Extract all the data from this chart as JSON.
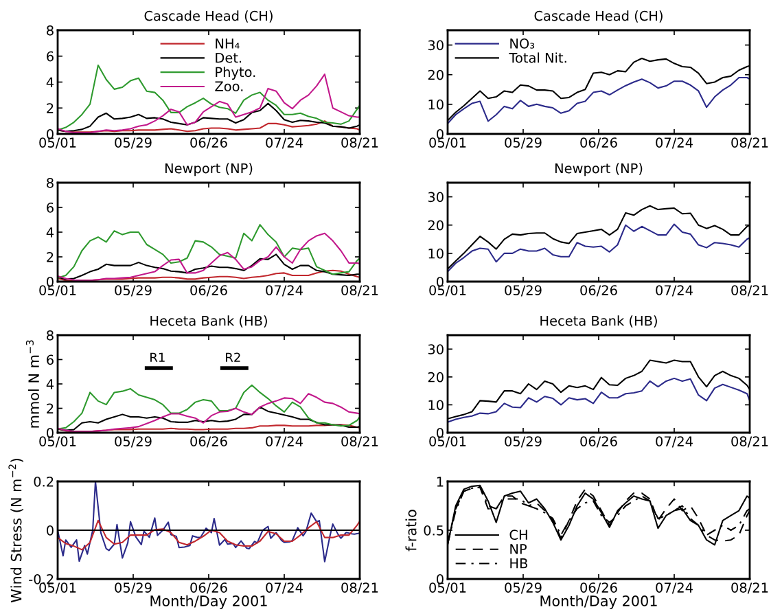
{
  "chart_data": [
    {
      "type": "line",
      "title": "Cascade Head (CH)",
      "x": [
        "2001-05-01",
        "2001-05-04",
        "2001-05-07",
        "2001-05-10",
        "2001-05-13",
        "2001-05-16",
        "2001-05-19",
        "2001-05-22",
        "2001-05-25",
        "2001-05-28",
        "2001-05-31",
        "2001-06-03",
        "2001-06-06",
        "2001-06-09",
        "2001-06-12",
        "2001-06-15",
        "2001-06-18",
        "2001-06-21",
        "2001-06-24",
        "2001-06-27",
        "2001-06-30",
        "2001-07-03",
        "2001-07-06",
        "2001-07-09",
        "2001-07-12",
        "2001-07-15",
        "2001-07-18",
        "2001-07-21",
        "2001-07-24",
        "2001-07-27",
        "2001-07-30",
        "2001-08-02",
        "2001-08-05",
        "2001-08-08",
        "2001-08-11",
        "2001-08-14",
        "2001-08-17",
        "2001-08-20",
        "2001-08-21"
      ],
      "series": [
        {
          "name": "NH₄",
          "color": "#c1272d",
          "values": [
            0.3,
            0.2,
            0.15,
            0.15,
            0.15,
            0.2,
            0.25,
            0.2,
            0.25,
            0.25,
            0.3,
            0.3,
            0.3,
            0.35,
            0.4,
            0.3,
            0.2,
            0.25,
            0.4,
            0.45,
            0.45,
            0.4,
            0.3,
            0.35,
            0.4,
            0.45,
            0.8,
            0.8,
            0.7,
            0.55,
            0.6,
            0.65,
            0.75,
            1.0,
            0.6,
            0.55,
            0.45,
            0.4,
            0.3
          ]
        },
        {
          "name": "Det.",
          "color": "#000000",
          "values": [
            0.3,
            0.2,
            0.25,
            0.35,
            0.6,
            1.3,
            1.6,
            1.15,
            1.2,
            1.3,
            1.5,
            1.2,
            1.25,
            1.15,
            0.9,
            0.8,
            0.7,
            0.9,
            1.25,
            1.2,
            1.15,
            1.15,
            0.85,
            1.1,
            1.65,
            1.8,
            2.35,
            1.8,
            1.1,
            0.9,
            1.05,
            1.0,
            0.9,
            0.85,
            0.6,
            0.55,
            0.45,
            0.6,
            0.7
          ]
        },
        {
          "name": "Phyto.",
          "color": "#2e9a2e",
          "values": [
            0.3,
            0.5,
            0.9,
            1.5,
            2.3,
            5.3,
            4.2,
            3.45,
            3.6,
            4.1,
            4.3,
            3.3,
            3.2,
            2.6,
            1.65,
            1.65,
            2.1,
            2.4,
            2.75,
            2.3,
            2.05,
            1.95,
            1.6,
            2.6,
            3.0,
            3.2,
            2.6,
            2.2,
            1.5,
            1.5,
            1.6,
            1.35,
            1.2,
            0.9,
            0.85,
            0.75,
            1.0,
            1.9,
            2.2
          ]
        },
        {
          "name": "Zoo.",
          "color": "#c2188b",
          "values": [
            0.4,
            0.2,
            0.1,
            0.1,
            0.1,
            0.2,
            0.3,
            0.25,
            0.3,
            0.4,
            0.6,
            0.7,
            1.0,
            1.4,
            1.9,
            1.7,
            0.7,
            0.9,
            1.7,
            2.1,
            2.5,
            2.3,
            1.3,
            1.5,
            1.7,
            2.0,
            3.5,
            3.3,
            2.4,
            1.95,
            2.6,
            3.0,
            3.7,
            4.6,
            2.0,
            1.7,
            1.4,
            1.3,
            1.3
          ]
        }
      ],
      "xlim": [
        "2001-05-01",
        "2001-08-21"
      ],
      "xticks": [
        {
          "value": "2001-05-01",
          "label": "05/01"
        },
        {
          "value": "2001-05-29",
          "label": "05/29"
        },
        {
          "value": "2001-06-26",
          "label": "06/26"
        },
        {
          "value": "2001-07-24",
          "label": "07/24"
        },
        {
          "value": "2001-08-21",
          "label": "08/21"
        }
      ],
      "ylim": [
        0,
        8
      ],
      "yticks": [
        0,
        2,
        4,
        6,
        8
      ],
      "legend": "top",
      "grid": false
    },
    {
      "type": "line",
      "title": "Cascade Head (CH)",
      "x": [
        "2001-05-01",
        "2001-05-04",
        "2001-05-07",
        "2001-05-10",
        "2001-05-13",
        "2001-05-16",
        "2001-05-19",
        "2001-05-22",
        "2001-05-25",
        "2001-05-28",
        "2001-05-31",
        "2001-06-03",
        "2001-06-06",
        "2001-06-09",
        "2001-06-12",
        "2001-06-15",
        "2001-06-18",
        "2001-06-21",
        "2001-06-24",
        "2001-06-27",
        "2001-06-30",
        "2001-07-03",
        "2001-07-06",
        "2001-07-09",
        "2001-07-12",
        "2001-07-15",
        "2001-07-18",
        "2001-07-21",
        "2001-07-24",
        "2001-07-27",
        "2001-07-30",
        "2001-08-02",
        "2001-08-05",
        "2001-08-08",
        "2001-08-11",
        "2001-08-14",
        "2001-08-17",
        "2001-08-20",
        "2001-08-21"
      ],
      "series": [
        {
          "name": "NO₃",
          "color": "#2b2a8a",
          "values": [
            3.5,
            6.5,
            8.5,
            10.3,
            11,
            4.3,
            6.5,
            9.3,
            8.5,
            11.3,
            9.3,
            10,
            9.3,
            8.8,
            7,
            7.8,
            10.3,
            11,
            14,
            14.5,
            13.2,
            14.8,
            16.3,
            17.5,
            18.5,
            17.3,
            15.5,
            16.2,
            17.8,
            17.8,
            16.5,
            14.5,
            9,
            12.5,
            14.8,
            16.5,
            19,
            19,
            18.5
          ]
        },
        {
          "name": "Total Nit.",
          "color": "#000000",
          "values": [
            4.5,
            7.3,
            9.5,
            12,
            14.5,
            12,
            12.5,
            14.5,
            14,
            16.5,
            16.2,
            14.8,
            14.8,
            14.5,
            12,
            12.3,
            14,
            15,
            20.5,
            20.8,
            20,
            21.3,
            21,
            24.2,
            25.5,
            24.5,
            25,
            25.3,
            23.8,
            22.7,
            22.5,
            20.5,
            17,
            17.5,
            19,
            19.5,
            21.5,
            22.7,
            23
          ]
        }
      ],
      "xlim": [
        "2001-05-01",
        "2001-08-21"
      ],
      "xticks": [
        {
          "value": "2001-05-01",
          "label": "05/01"
        },
        {
          "value": "2001-05-29",
          "label": "05/29"
        },
        {
          "value": "2001-06-26",
          "label": "06/26"
        },
        {
          "value": "2001-07-24",
          "label": "07/24"
        },
        {
          "value": "2001-08-21",
          "label": "08/21"
        }
      ],
      "ylim": [
        0,
        35
      ],
      "yticks": [
        0,
        10,
        20,
        30
      ],
      "legend": "top left",
      "grid": false
    },
    {
      "type": "line",
      "title": "Newport (NP)",
      "x": [
        "2001-05-01",
        "2001-05-04",
        "2001-05-07",
        "2001-05-10",
        "2001-05-13",
        "2001-05-16",
        "2001-05-19",
        "2001-05-22",
        "2001-05-25",
        "2001-05-28",
        "2001-05-31",
        "2001-06-03",
        "2001-06-06",
        "2001-06-09",
        "2001-06-12",
        "2001-06-15",
        "2001-06-18",
        "2001-06-21",
        "2001-06-24",
        "2001-06-27",
        "2001-06-30",
        "2001-07-03",
        "2001-07-06",
        "2001-07-09",
        "2001-07-12",
        "2001-07-15",
        "2001-07-18",
        "2001-07-21",
        "2001-07-24",
        "2001-07-27",
        "2001-07-30",
        "2001-08-02",
        "2001-08-05",
        "2001-08-08",
        "2001-08-11",
        "2001-08-14",
        "2001-08-17",
        "2001-08-20",
        "2001-08-21"
      ],
      "series": [
        {
          "color": "#c1272d",
          "values": [
            0.25,
            0.1,
            0.04,
            0.1,
            0.1,
            0.15,
            0.2,
            0.2,
            0.2,
            0.25,
            0.3,
            0.3,
            0.3,
            0.35,
            0.35,
            0.3,
            0.2,
            0.2,
            0.3,
            0.35,
            0.4,
            0.4,
            0.35,
            0.25,
            0.35,
            0.4,
            0.5,
            0.65,
            0.7,
            0.5,
            0.5,
            0.5,
            0.7,
            0.85,
            0.9,
            0.85,
            0.6,
            0.4,
            0.35
          ]
        },
        {
          "color": "#000000",
          "values": [
            0.35,
            0.2,
            0.25,
            0.5,
            0.8,
            1.0,
            1.4,
            1.3,
            1.3,
            1.3,
            1.55,
            1.3,
            1.15,
            1.05,
            0.85,
            0.8,
            0.7,
            1.0,
            1.1,
            1.25,
            1.15,
            1.15,
            1.05,
            0.9,
            1.3,
            1.85,
            1.8,
            2.2,
            1.4,
            1.0,
            1.3,
            1.3,
            0.9,
            0.8,
            0.6,
            0.55,
            0.5,
            0.6,
            0.6
          ]
        },
        {
          "color": "#2e9a2e",
          "values": [
            0.3,
            0.5,
            1.2,
            2.5,
            3.3,
            3.6,
            3.2,
            4.1,
            3.8,
            4.0,
            4.0,
            3.0,
            2.6,
            2.2,
            1.5,
            1.6,
            1.9,
            3.3,
            3.2,
            2.8,
            2.2,
            2.05,
            1.9,
            3.9,
            3.3,
            4.6,
            3.8,
            3.2,
            2.0,
            2.7,
            2.6,
            2.7,
            1.2,
            0.9,
            0.6,
            0.7,
            0.8,
            1.7,
            1.9
          ]
        },
        {
          "color": "#c2188b",
          "values": [
            0.45,
            0.25,
            0.12,
            0.1,
            0.1,
            0.15,
            0.25,
            0.25,
            0.3,
            0.35,
            0.5,
            0.65,
            0.8,
            1.3,
            1.75,
            1.8,
            0.7,
            0.7,
            0.9,
            1.5,
            2.1,
            2.35,
            1.8,
            1.0,
            1.2,
            1.7,
            2.0,
            2.8,
            2.0,
            1.5,
            2.6,
            3.3,
            3.7,
            3.9,
            3.3,
            2.5,
            1.5,
            1.5,
            1.45
          ]
        }
      ],
      "xlim": [
        "2001-05-01",
        "2001-08-21"
      ],
      "xticks": [
        {
          "value": "2001-05-01",
          "label": "05/01"
        },
        {
          "value": "2001-05-29",
          "label": "05/29"
        },
        {
          "value": "2001-06-26",
          "label": "06/26"
        },
        {
          "value": "2001-07-24",
          "label": "07/24"
        },
        {
          "value": "2001-08-21",
          "label": "08/21"
        }
      ],
      "ylim": [
        0,
        8
      ],
      "yticks": [
        0,
        2,
        4,
        6,
        8
      ],
      "grid": false
    },
    {
      "type": "line",
      "title": "Newport (NP)",
      "x": [
        "2001-05-01",
        "2001-05-04",
        "2001-05-07",
        "2001-05-10",
        "2001-05-13",
        "2001-05-16",
        "2001-05-19",
        "2001-05-22",
        "2001-05-25",
        "2001-05-28",
        "2001-05-31",
        "2001-06-03",
        "2001-06-06",
        "2001-06-09",
        "2001-06-12",
        "2001-06-15",
        "2001-06-18",
        "2001-06-21",
        "2001-06-24",
        "2001-06-27",
        "2001-06-30",
        "2001-07-03",
        "2001-07-06",
        "2001-07-09",
        "2001-07-12",
        "2001-07-15",
        "2001-07-18",
        "2001-07-21",
        "2001-07-24",
        "2001-07-27",
        "2001-07-30",
        "2001-08-02",
        "2001-08-05",
        "2001-08-08",
        "2001-08-11",
        "2001-08-14",
        "2001-08-17",
        "2001-08-20",
        "2001-08-21"
      ],
      "series": [
        {
          "color": "#2b2a8a",
          "values": [
            3.5,
            6.5,
            8.5,
            10.8,
            11.8,
            11.5,
            7,
            10,
            10,
            11.5,
            10.8,
            10.8,
            11.8,
            9.5,
            8.8,
            8.8,
            13.8,
            12.5,
            12.2,
            12.5,
            10.5,
            13,
            20,
            17.8,
            19.5,
            18,
            16.5,
            16.5,
            20.3,
            17.5,
            16.8,
            13,
            12,
            13.8,
            13.5,
            13,
            12.2,
            15,
            15.5
          ]
        },
        {
          "color": "#000000",
          "values": [
            4.5,
            7.3,
            10,
            13,
            16,
            14,
            11.5,
            15,
            16.8,
            16.5,
            17,
            17.2,
            17.2,
            15.2,
            14,
            13.5,
            17,
            17.5,
            18,
            18.5,
            16.5,
            18.5,
            24.3,
            23.5,
            25.5,
            26.8,
            25.5,
            25.8,
            26,
            24,
            24.2,
            20,
            18.8,
            19.8,
            18.5,
            16.5,
            16.5,
            19.5,
            20
          ]
        }
      ],
      "xlim": [
        "2001-05-01",
        "2001-08-21"
      ],
      "xticks": [
        {
          "value": "2001-05-01",
          "label": "05/01"
        },
        {
          "value": "2001-05-29",
          "label": "05/29"
        },
        {
          "value": "2001-06-26",
          "label": "06/26"
        },
        {
          "value": "2001-07-24",
          "label": "07/24"
        },
        {
          "value": "2001-08-21",
          "label": "08/21"
        }
      ],
      "ylim": [
        0,
        35
      ],
      "yticks": [
        0,
        10,
        20,
        30
      ],
      "grid": false
    },
    {
      "type": "line",
      "title": "Heceta Bank (HB)",
      "ylabel": "mmol N m$^{−3}$",
      "x": [
        "2001-05-01",
        "2001-05-04",
        "2001-05-07",
        "2001-05-10",
        "2001-05-13",
        "2001-05-16",
        "2001-05-19",
        "2001-05-22",
        "2001-05-25",
        "2001-05-28",
        "2001-05-31",
        "2001-06-03",
        "2001-06-06",
        "2001-06-09",
        "2001-06-12",
        "2001-06-15",
        "2001-06-18",
        "2001-06-21",
        "2001-06-24",
        "2001-06-27",
        "2001-06-30",
        "2001-07-03",
        "2001-07-06",
        "2001-07-09",
        "2001-07-12",
        "2001-07-15",
        "2001-07-18",
        "2001-07-21",
        "2001-07-24",
        "2001-07-27",
        "2001-07-30",
        "2001-08-02",
        "2001-08-05",
        "2001-08-08",
        "2001-08-11",
        "2001-08-14",
        "2001-08-17",
        "2001-08-20",
        "2001-08-21"
      ],
      "series": [
        {
          "color": "#c1272d",
          "values": [
            0.3,
            0.15,
            0.1,
            0.1,
            0.1,
            0.15,
            0.2,
            0.25,
            0.25,
            0.25,
            0.3,
            0.3,
            0.3,
            0.3,
            0.35,
            0.3,
            0.3,
            0.25,
            0.25,
            0.3,
            0.3,
            0.3,
            0.35,
            0.35,
            0.4,
            0.55,
            0.55,
            0.6,
            0.6,
            0.55,
            0.55,
            0.55,
            0.6,
            0.6,
            0.65,
            0.65,
            0.6,
            0.45,
            0.4
          ]
        },
        {
          "color": "#000000",
          "values": [
            0.3,
            0.2,
            0.25,
            0.8,
            0.9,
            0.8,
            1.1,
            1.3,
            1.5,
            1.3,
            1.3,
            1.2,
            1.3,
            1.2,
            0.9,
            0.85,
            0.85,
            1.0,
            0.9,
            1.0,
            0.9,
            0.95,
            1.1,
            1.5,
            1.5,
            2.1,
            1.75,
            1.6,
            1.45,
            1.3,
            1.1,
            1.1,
            0.85,
            0.65,
            0.65,
            0.6,
            0.45,
            0.45,
            0.5
          ]
        },
        {
          "color": "#2e9a2e",
          "values": [
            0.3,
            0.4,
            0.9,
            1.6,
            3.3,
            2.6,
            2.3,
            3.3,
            3.4,
            3.6,
            3.1,
            2.9,
            2.7,
            2.3,
            1.6,
            1.6,
            1.9,
            2.5,
            2.7,
            2.6,
            1.8,
            1.8,
            2.0,
            3.3,
            3.9,
            3.3,
            2.8,
            2.2,
            1.7,
            2.5,
            2.1,
            1.2,
            0.8,
            0.8,
            0.65,
            0.55,
            0.6,
            1.0,
            1.3
          ]
        },
        {
          "color": "#c2188b",
          "values": [
            0.35,
            0.2,
            0.1,
            0.1,
            0.1,
            0.15,
            0.2,
            0.3,
            0.35,
            0.4,
            0.5,
            0.75,
            1.0,
            1.3,
            1.55,
            1.55,
            1.35,
            1.2,
            0.8,
            1.4,
            1.7,
            1.75,
            2.0,
            1.7,
            1.5,
            2.1,
            2.4,
            2.6,
            2.85,
            2.8,
            2.4,
            3.2,
            2.9,
            2.5,
            2.4,
            2.1,
            1.7,
            1.6,
            1.55
          ]
        },
        {
          "color": "#000000",
          "x": [
            "2001-06-03",
            "2001-06-12"
          ],
          "values": [
            5.3,
            5.3
          ]
        },
        {
          "color": "#000000",
          "x": [
            "2001-07-01",
            "2001-07-10"
          ],
          "values": [
            5.3,
            5.3
          ]
        }
      ],
      "annotations": [
        {
          "text": "R1",
          "x": "2001-06-07",
          "y": 5.6
        },
        {
          "text": "R2",
          "x": "2001-07-05",
          "y": 5.6
        }
      ],
      "xlim": [
        "2001-05-01",
        "2001-08-21"
      ],
      "xticks": [
        {
          "value": "2001-05-01",
          "label": "05/01"
        },
        {
          "value": "2001-05-29",
          "label": "05/29"
        },
        {
          "value": "2001-06-26",
          "label": "06/26"
        },
        {
          "value": "2001-07-24",
          "label": "07/24"
        },
        {
          "value": "2001-08-21",
          "label": "08/21"
        }
      ],
      "ylim": [
        0,
        8
      ],
      "yticks": [
        0,
        2,
        4,
        6,
        8
      ],
      "grid": false
    },
    {
      "type": "line",
      "title": "Heceta Bank (HB)",
      "x": [
        "2001-05-01",
        "2001-05-04",
        "2001-05-07",
        "2001-05-10",
        "2001-05-13",
        "2001-05-16",
        "2001-05-19",
        "2001-05-22",
        "2001-05-25",
        "2001-05-28",
        "2001-05-31",
        "2001-06-03",
        "2001-06-06",
        "2001-06-09",
        "2001-06-12",
        "2001-06-15",
        "2001-06-18",
        "2001-06-21",
        "2001-06-24",
        "2001-06-27",
        "2001-06-30",
        "2001-07-03",
        "2001-07-06",
        "2001-07-09",
        "2001-07-12",
        "2001-07-15",
        "2001-07-18",
        "2001-07-21",
        "2001-07-24",
        "2001-07-27",
        "2001-07-30",
        "2001-08-02",
        "2001-08-05",
        "2001-08-08",
        "2001-08-11",
        "2001-08-14",
        "2001-08-17",
        "2001-08-20",
        "2001-08-21"
      ],
      "series": [
        {
          "color": "#2b2a8a",
          "values": [
            3.8,
            4.8,
            5.5,
            6,
            7,
            6.8,
            7.5,
            10.5,
            9.2,
            9,
            12.5,
            11,
            13,
            12.3,
            10,
            12.5,
            11.8,
            12.2,
            10.5,
            14.5,
            12.5,
            12.5,
            14,
            14.3,
            15,
            18.5,
            16.5,
            18.5,
            19.5,
            18.5,
            19.3,
            13.5,
            11.5,
            16,
            17.3,
            16.3,
            15.3,
            14,
            11.5
          ]
        },
        {
          "color": "#000000",
          "values": [
            5,
            5.8,
            6.5,
            7.5,
            11.5,
            11.3,
            11,
            15,
            15,
            14,
            17.5,
            15.5,
            18.5,
            17.5,
            14.5,
            16.8,
            16.2,
            16.8,
            15.5,
            19.8,
            17.2,
            17,
            19.5,
            20.5,
            22,
            26,
            25.5,
            25,
            26,
            25.5,
            25.5,
            20,
            16.5,
            20.5,
            22,
            20.5,
            19.5,
            17,
            15.5
          ]
        }
      ],
      "xlim": [
        "2001-05-01",
        "2001-08-21"
      ],
      "xticks": [
        {
          "value": "2001-05-01",
          "label": "05/01"
        },
        {
          "value": "2001-05-29",
          "label": "05/29"
        },
        {
          "value": "2001-06-26",
          "label": "06/26"
        },
        {
          "value": "2001-07-24",
          "label": "07/24"
        },
        {
          "value": "2001-08-21",
          "label": "08/21"
        }
      ],
      "ylim": [
        0,
        35
      ],
      "yticks": [
        0,
        10,
        20,
        30
      ],
      "grid": false
    },
    {
      "type": "line",
      "xlabel": "Month/Day 2001",
      "ylabel": "Wind Stress (N m$^{−2}$)",
      "series": [
        {
          "color": "#2b2a8a",
          "x": [
            "2001-05-01",
            "2001-05-03",
            "2001-05-04",
            "2001-05-06",
            "2001-05-08",
            "2001-05-09",
            "2001-05-11",
            "2001-05-12",
            "2001-05-14",
            "2001-05-15",
            "2001-05-17",
            "2001-05-19",
            "2001-05-20",
            "2001-05-22",
            "2001-05-23",
            "2001-05-25",
            "2001-05-27",
            "2001-05-28",
            "2001-05-30",
            "2001-06-01",
            "2001-06-02",
            "2001-06-04",
            "2001-06-06",
            "2001-06-07",
            "2001-06-09",
            "2001-06-11",
            "2001-06-12",
            "2001-06-14",
            "2001-06-15",
            "2001-06-17",
            "2001-06-19",
            "2001-06-20",
            "2001-06-22",
            "2001-06-23",
            "2001-06-25",
            "2001-06-27",
            "2001-06-28",
            "2001-06-30",
            "2001-07-02",
            "2001-07-03",
            "2001-07-05",
            "2001-07-06",
            "2001-07-08",
            "2001-07-10",
            "2001-07-11",
            "2001-07-13",
            "2001-07-14",
            "2001-07-16",
            "2001-07-18",
            "2001-07-19",
            "2001-07-21",
            "2001-07-23",
            "2001-07-24",
            "2001-07-26",
            "2001-07-27",
            "2001-07-29",
            "2001-07-31",
            "2001-08-01",
            "2001-08-03",
            "2001-08-05",
            "2001-08-06",
            "2001-08-08",
            "2001-08-10",
            "2001-08-11",
            "2001-08-13",
            "2001-08-14",
            "2001-08-16",
            "2001-08-18",
            "2001-08-19",
            "2001-08-21"
          ],
          "values": [
            0.0,
            -0.105,
            -0.04,
            -0.07,
            -0.04,
            -0.127,
            -0.063,
            -0.098,
            0.0,
            0.2,
            -0.01,
            -0.076,
            -0.083,
            -0.057,
            0.023,
            -0.114,
            -0.052,
            0.035,
            -0.028,
            -0.059,
            -0.004,
            -0.029,
            0.05,
            -0.021,
            0.0,
            0.033,
            -0.018,
            -0.025,
            -0.071,
            -0.069,
            -0.063,
            -0.023,
            -0.03,
            -0.029,
            0.008,
            -0.01,
            0.048,
            -0.061,
            -0.038,
            -0.057,
            -0.054,
            -0.071,
            -0.044,
            -0.073,
            -0.076,
            -0.046,
            -0.052,
            0.0,
            0.015,
            -0.033,
            -0.01,
            -0.042,
            -0.05,
            -0.048,
            -0.042,
            0.01,
            -0.023,
            -0.007,
            0.07,
            0.035,
            0.039,
            -0.129,
            -0.021,
            0.025,
            -0.018,
            -0.033,
            -0.009,
            -0.015,
            -0.016,
            -0.012
          ]
        },
        {
          "color": "#c1272d",
          "x": [
            "2001-05-01",
            "2001-05-04",
            "2001-05-07",
            "2001-05-10",
            "2001-05-13",
            "2001-05-16",
            "2001-05-19",
            "2001-05-22",
            "2001-05-25",
            "2001-05-28",
            "2001-05-31",
            "2001-06-03",
            "2001-06-06",
            "2001-06-09",
            "2001-06-12",
            "2001-06-15",
            "2001-06-18",
            "2001-06-21",
            "2001-06-24",
            "2001-06-27",
            "2001-06-30",
            "2001-07-03",
            "2001-07-06",
            "2001-07-09",
            "2001-07-12",
            "2001-07-15",
            "2001-07-18",
            "2001-07-21",
            "2001-07-24",
            "2001-07-27",
            "2001-07-30",
            "2001-08-02",
            "2001-08-05",
            "2001-08-08",
            "2001-08-11",
            "2001-08-14",
            "2001-08-17",
            "2001-08-20",
            "2001-08-21"
          ],
          "values": [
            -0.03,
            -0.055,
            -0.065,
            -0.08,
            -0.05,
            0.04,
            -0.03,
            -0.057,
            -0.05,
            -0.02,
            -0.02,
            -0.02,
            0.002,
            0.005,
            -0.01,
            -0.05,
            -0.06,
            -0.045,
            -0.025,
            0.0,
            -0.01,
            -0.045,
            -0.06,
            -0.065,
            -0.065,
            -0.045,
            -0.005,
            -0.015,
            -0.045,
            -0.045,
            -0.02,
            0.01,
            0.035,
            -0.03,
            -0.03,
            -0.02,
            -0.02,
            0.02,
            0.037
          ]
        }
      ],
      "ref_lines": [
        {
          "axis": "y",
          "value": 0,
          "color": "#000000"
        }
      ],
      "xlim": [
        "2001-05-01",
        "2001-08-21"
      ],
      "xticks": [
        {
          "value": "2001-05-01",
          "label": "05/01"
        },
        {
          "value": "2001-05-29",
          "label": "05/29"
        },
        {
          "value": "2001-06-26",
          "label": "06/26"
        },
        {
          "value": "2001-07-24",
          "label": "07/24"
        },
        {
          "value": "2001-08-21",
          "label": "08/21"
        }
      ],
      "ylim": [
        -0.2,
        0.2
      ],
      "yticks": [
        -0.2,
        0,
        0.2
      ],
      "grid": false
    },
    {
      "type": "line",
      "xlabel": "Month/Day 2001",
      "ylabel": "f-ratio",
      "x": [
        "2001-05-01",
        "2001-05-04",
        "2001-05-07",
        "2001-05-10",
        "2001-05-13",
        "2001-05-16",
        "2001-05-19",
        "2001-05-22",
        "2001-05-25",
        "2001-05-28",
        "2001-05-31",
        "2001-06-03",
        "2001-06-06",
        "2001-06-09",
        "2001-06-12",
        "2001-06-15",
        "2001-06-18",
        "2001-06-21",
        "2001-06-24",
        "2001-06-27",
        "2001-06-30",
        "2001-07-03",
        "2001-07-06",
        "2001-07-09",
        "2001-07-12",
        "2001-07-15",
        "2001-07-18",
        "2001-07-21",
        "2001-07-24",
        "2001-07-27",
        "2001-07-30",
        "2001-08-02",
        "2001-08-05",
        "2001-08-08",
        "2001-08-11",
        "2001-08-14",
        "2001-08-17",
        "2001-08-20",
        "2001-08-21"
      ],
      "series": [
        {
          "name": "CH",
          "color": "#000000",
          "line_style": "solid",
          "values": [
            0.35,
            0.75,
            0.92,
            0.95,
            0.96,
            0.8,
            0.58,
            0.85,
            0.88,
            0.9,
            0.78,
            0.82,
            0.72,
            0.58,
            0.4,
            0.55,
            0.75,
            0.88,
            0.82,
            0.68,
            0.53,
            0.7,
            0.78,
            0.85,
            0.82,
            0.8,
            0.52,
            0.65,
            0.7,
            0.72,
            0.6,
            0.55,
            0.4,
            0.35,
            0.6,
            0.65,
            0.7,
            0.85,
            0.83
          ]
        },
        {
          "name": "NP",
          "color": "#000000",
          "line_style": "dashed",
          "values": [
            0.37,
            0.72,
            0.9,
            0.93,
            0.94,
            0.72,
            0.72,
            0.85,
            0.85,
            0.78,
            0.75,
            0.78,
            0.7,
            0.6,
            0.42,
            0.6,
            0.8,
            0.92,
            0.85,
            0.7,
            0.55,
            0.68,
            0.8,
            0.88,
            0.88,
            0.82,
            0.6,
            0.72,
            0.82,
            0.7,
            0.75,
            0.62,
            0.45,
            0.4,
            0.39,
            0.4,
            0.45,
            0.65,
            0.7
          ]
        },
        {
          "name": "HB",
          "color": "#000000",
          "line_style": "dashdot",
          "values": [
            0.36,
            0.7,
            0.9,
            0.93,
            0.95,
            0.75,
            0.72,
            0.82,
            0.82,
            0.82,
            0.75,
            0.72,
            0.68,
            0.62,
            0.45,
            0.6,
            0.72,
            0.78,
            0.8,
            0.65,
            0.58,
            0.65,
            0.75,
            0.8,
            0.85,
            0.8,
            0.62,
            0.65,
            0.7,
            0.75,
            0.62,
            0.55,
            0.45,
            0.5,
            0.55,
            0.5,
            0.55,
            0.7,
            0.72
          ]
        }
      ],
      "xlim": [
        "2001-05-01",
        "2001-08-21"
      ],
      "xticks": [
        {
          "value": "2001-05-01",
          "label": "05/01"
        },
        {
          "value": "2001-05-29",
          "label": "05/29"
        },
        {
          "value": "2001-06-26",
          "label": "06/26"
        },
        {
          "value": "2001-07-24",
          "label": "07/24"
        },
        {
          "value": "2001-08-21",
          "label": "08/21"
        }
      ],
      "ylim": [
        0,
        1
      ],
      "yticks": [
        0,
        0.5,
        1
      ],
      "legend": "bottom left",
      "grid": false
    }
  ]
}
